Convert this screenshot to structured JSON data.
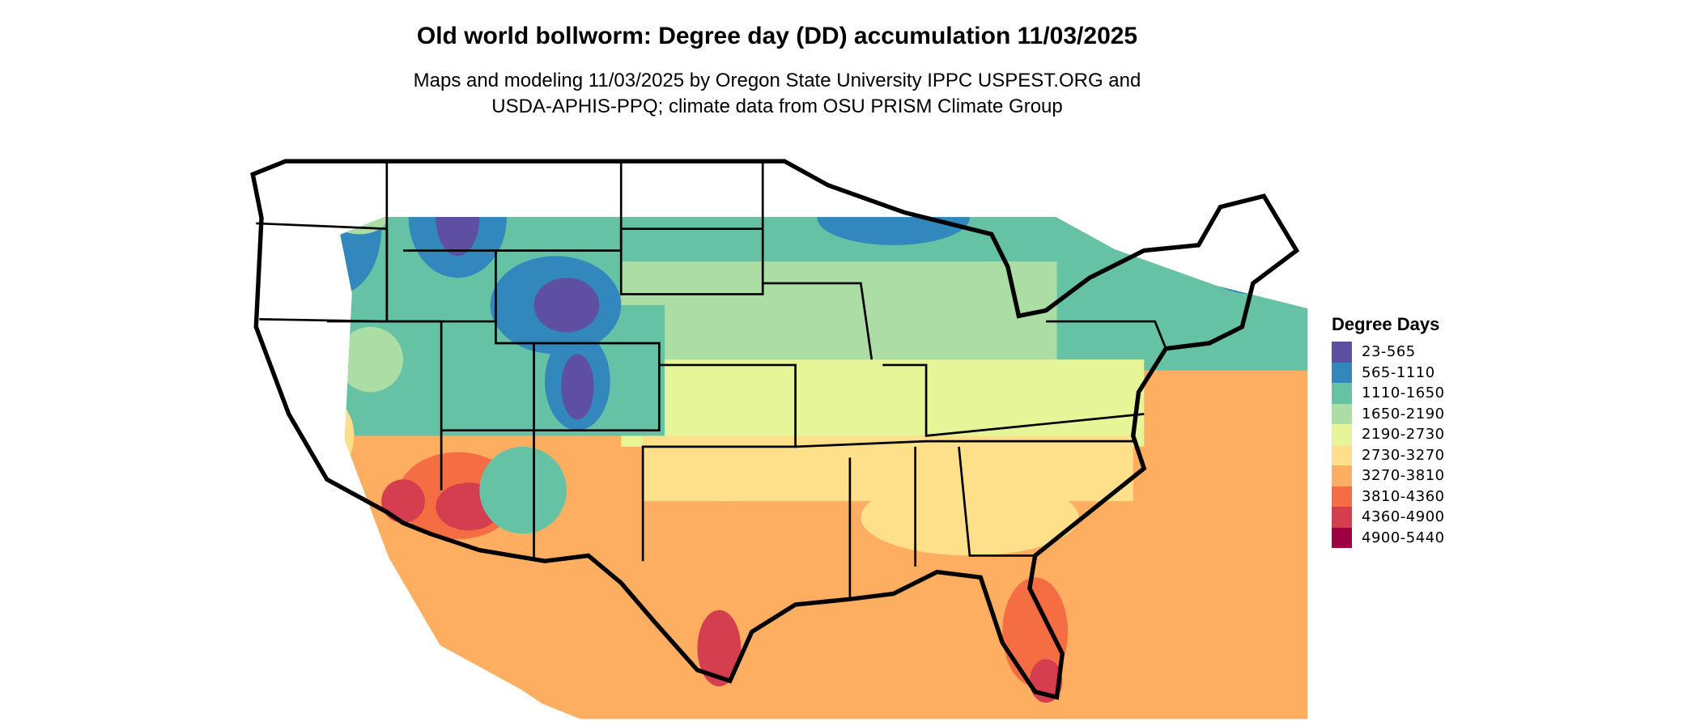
{
  "title": "Old world bollworm: Degree day (DD) accumulation 11/03/2025",
  "subtitle_line1": "Maps and modeling 11/03/2025 by Oregon State University IPPC USPEST.ORG and",
  "subtitle_line2": "USDA-APHIS-PPQ; climate data from OSU PRISM Climate Group",
  "legend": {
    "title": "Degree Days",
    "items": [
      {
        "label": "23-565",
        "color": "#5E4FA2"
      },
      {
        "label": "565-1110",
        "color": "#3288BD"
      },
      {
        "label": "1110-1650",
        "color": "#66C2A5"
      },
      {
        "label": "1650-2190",
        "color": "#ABDDA4"
      },
      {
        "label": "2190-2730",
        "color": "#E6F598"
      },
      {
        "label": "2730-3270",
        "color": "#FEE08B"
      },
      {
        "label": "3270-3810",
        "color": "#FDAE61"
      },
      {
        "label": "3810-4360",
        "color": "#F46D43"
      },
      {
        "label": "4360-4900",
        "color": "#D53E4F"
      },
      {
        "label": "4900-5440",
        "color": "#9E0142"
      }
    ]
  }
}
